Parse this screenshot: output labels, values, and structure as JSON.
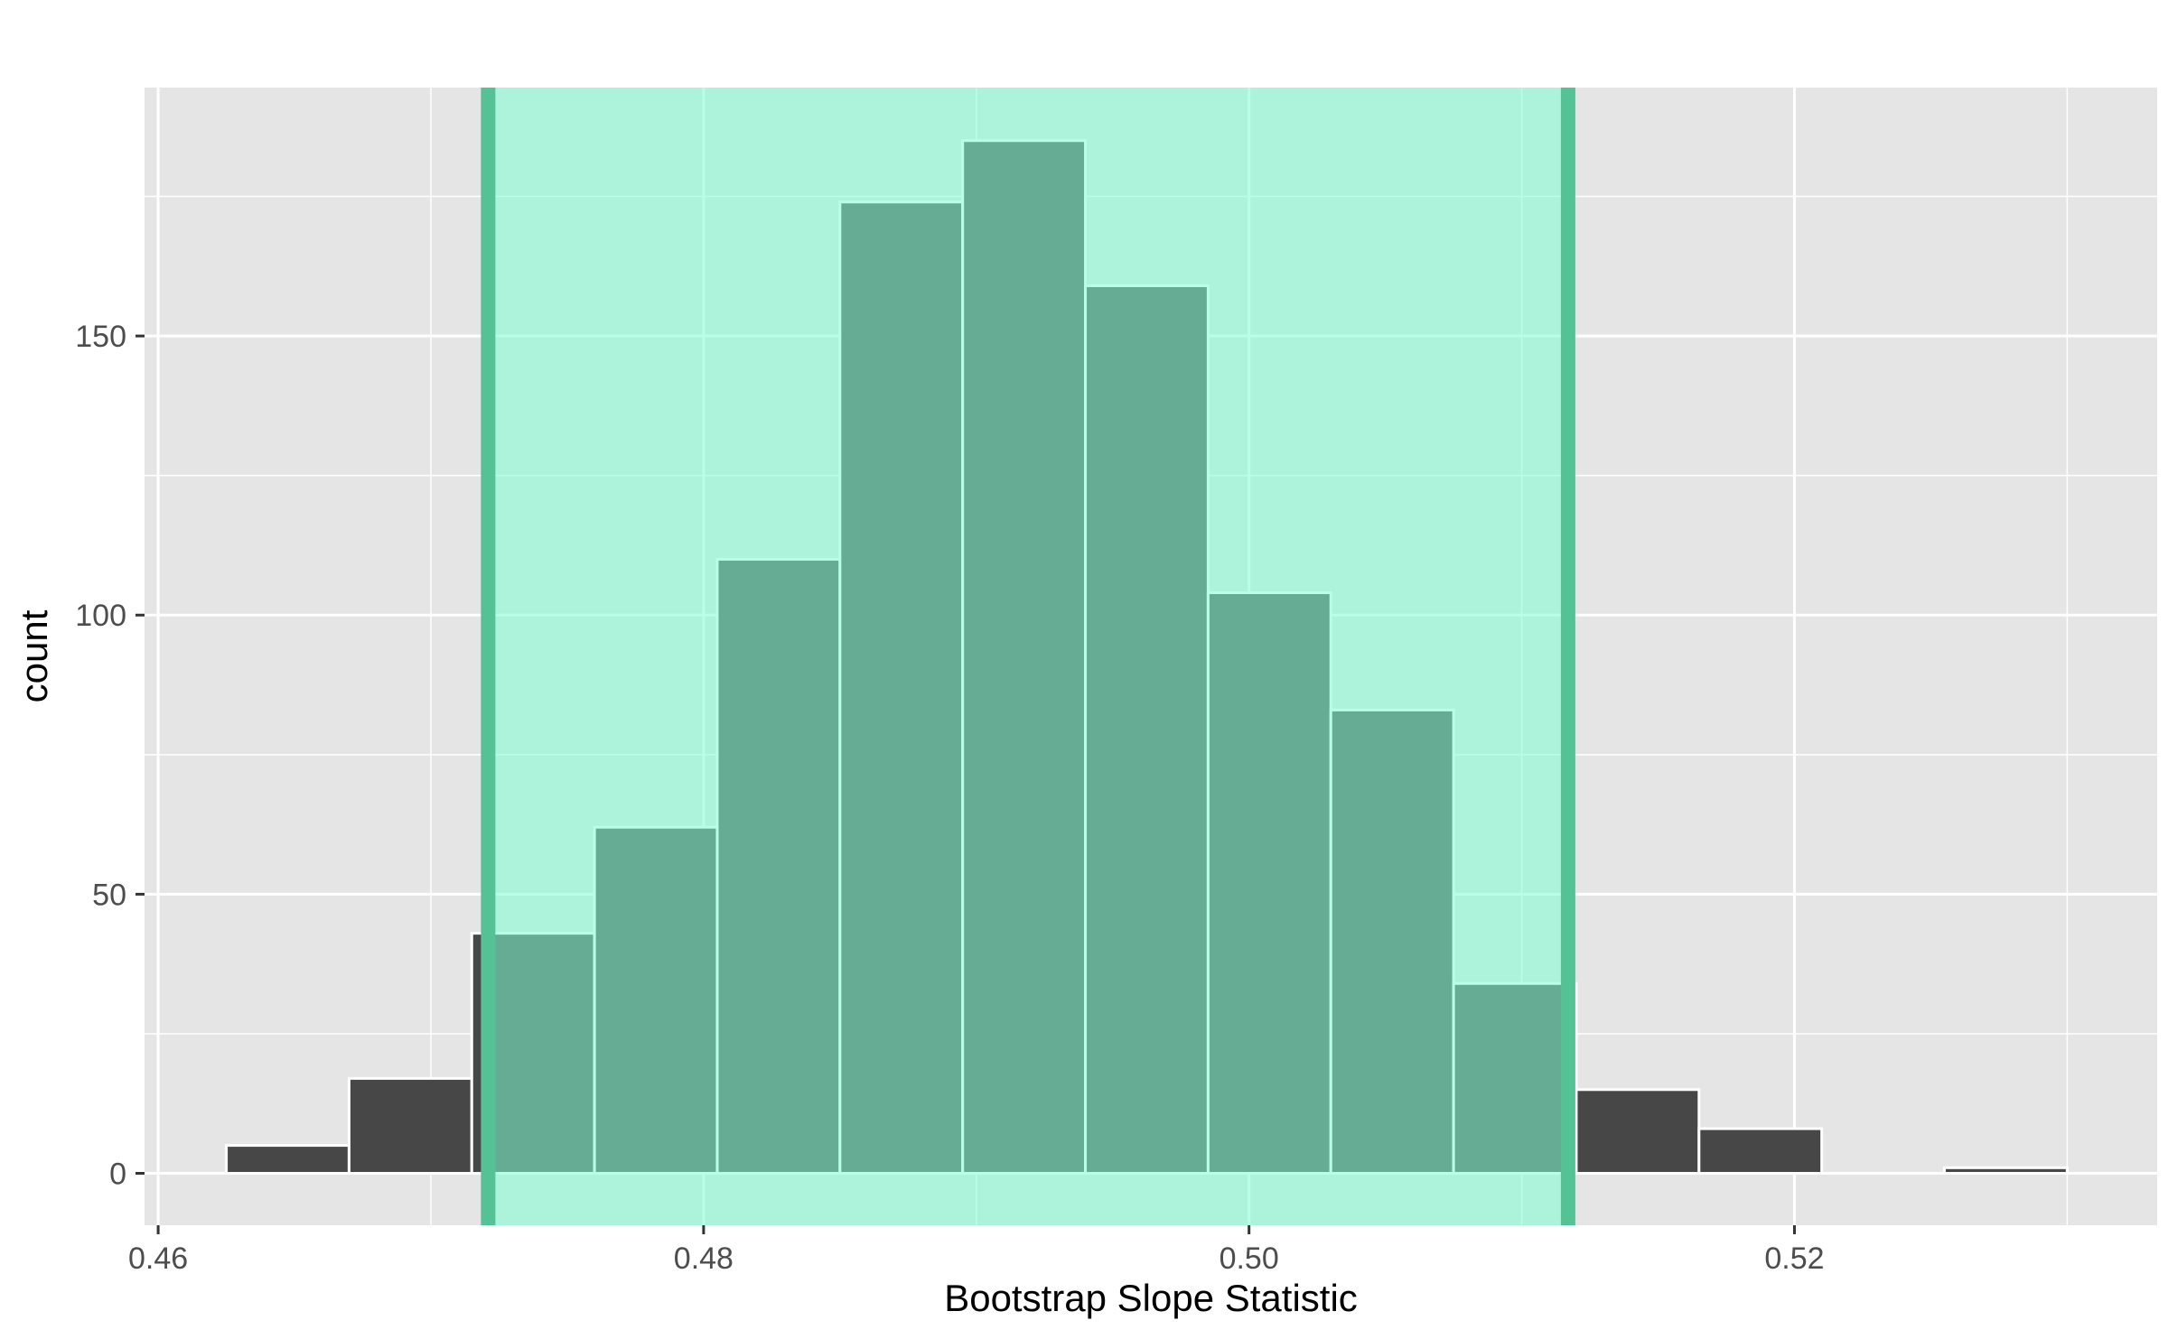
{
  "chart_data": {
    "type": "histogram",
    "xlabel": "Bootstrap Slope Statistic",
    "ylabel": "count",
    "xlim": [
      0.4595,
      0.5333
    ],
    "ylim": [
      -9.3,
      194.5
    ],
    "x_ticks": [
      0.46,
      0.48,
      0.5,
      0.52
    ],
    "x_tick_labels": [
      "0.46",
      "0.48",
      "0.50",
      "0.52"
    ],
    "y_ticks": [
      0,
      50,
      100,
      150
    ],
    "y_tick_labels": [
      "0",
      "50",
      "100",
      "150"
    ],
    "bins": [
      {
        "x0": 0.4625,
        "x1": 0.467,
        "count": 5
      },
      {
        "x0": 0.467,
        "x1": 0.4715,
        "count": 17
      },
      {
        "x0": 0.4715,
        "x1": 0.476,
        "count": 43
      },
      {
        "x0": 0.476,
        "x1": 0.4805,
        "count": 62
      },
      {
        "x0": 0.4805,
        "x1": 0.485,
        "count": 110
      },
      {
        "x0": 0.485,
        "x1": 0.4895,
        "count": 174
      },
      {
        "x0": 0.4895,
        "x1": 0.494,
        "count": 185
      },
      {
        "x0": 0.494,
        "x1": 0.4985,
        "count": 159
      },
      {
        "x0": 0.4985,
        "x1": 0.503,
        "count": 104
      },
      {
        "x0": 0.503,
        "x1": 0.5075,
        "count": 83
      },
      {
        "x0": 0.5075,
        "x1": 0.512,
        "count": 34
      },
      {
        "x0": 0.512,
        "x1": 0.5165,
        "count": 15
      },
      {
        "x0": 0.5165,
        "x1": 0.521,
        "count": 8
      },
      {
        "x0": 0.521,
        "x1": 0.5255,
        "count": 0
      },
      {
        "x0": 0.5255,
        "x1": 0.53,
        "count": 1
      }
    ],
    "confidence_interval": {
      "lower": 0.4721,
      "upper": 0.5117
    },
    "grid": true,
    "colors": {
      "panel_bg": "#e5e5e5",
      "grid": "#ffffff",
      "bar_fill": "#474747",
      "bar_border": "#ffffff",
      "shade_fill": "#7fffd4",
      "shade_opacity": 0.55,
      "ci_line": "#54c295",
      "tick_text": "#4d4d4d",
      "title_text": "#000000"
    }
  }
}
